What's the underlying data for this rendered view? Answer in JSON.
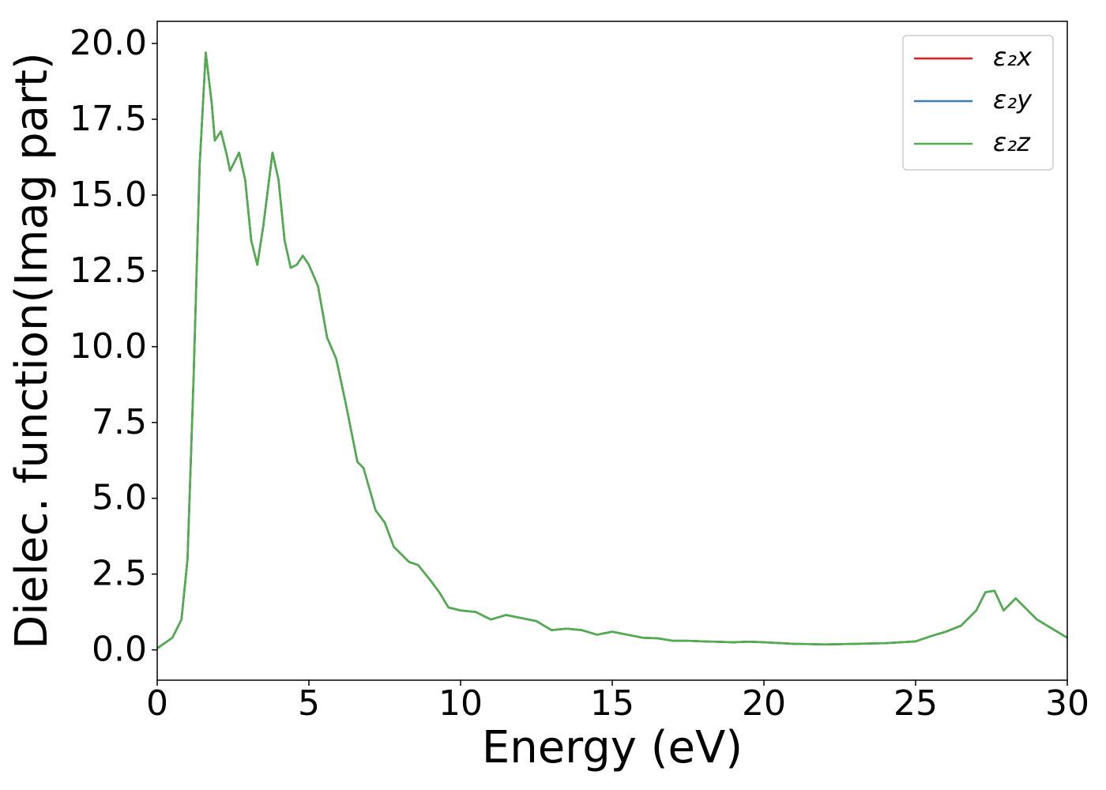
{
  "chart_data": {
    "type": "line",
    "xlabel": "Energy (eV)",
    "ylabel": "Dielec. function(Imag part)",
    "x": [
      0,
      0.5,
      0.8,
      1.0,
      1.2,
      1.4,
      1.6,
      1.8,
      1.9,
      2.1,
      2.3,
      2.4,
      2.5,
      2.7,
      2.9,
      3.1,
      3.3,
      3.5,
      3.8,
      4.0,
      4.2,
      4.4,
      4.6,
      4.8,
      5.0,
      5.3,
      5.6,
      5.9,
      6.2,
      6.4,
      6.6,
      6.8,
      7.0,
      7.2,
      7.5,
      7.8,
      8.0,
      8.3,
      8.6,
      9.0,
      9.3,
      9.6,
      10.0,
      10.5,
      11.0,
      11.5,
      12.0,
      12.5,
      13.0,
      13.5,
      14.0,
      14.5,
      15.0,
      15.5,
      16.0,
      16.5,
      17.0,
      17.5,
      18,
      19,
      19.5,
      20,
      21,
      22,
      23,
      24,
      25,
      25.5,
      26,
      26.5,
      27,
      27.3,
      27.6,
      27.9,
      28.3,
      28.6,
      29,
      29.5,
      30
    ],
    "series": [
      {
        "name": "ε₂x",
        "color": "#e41a1c",
        "values": [
          0.05,
          0.4,
          1.0,
          3.0,
          9,
          16,
          19.7,
          18,
          16.8,
          17.1,
          16.3,
          15.8,
          16.0,
          16.4,
          15.5,
          13.5,
          12.7,
          14.0,
          16.4,
          15.5,
          13.5,
          12.6,
          12.7,
          13.0,
          12.7,
          12.0,
          10.3,
          9.6,
          8.2,
          7.2,
          6.2,
          6.0,
          5.3,
          4.6,
          4.2,
          3.4,
          3.2,
          2.9,
          2.8,
          2.3,
          1.9,
          1.4,
          1.3,
          1.25,
          1.0,
          1.15,
          1.05,
          0.95,
          0.65,
          0.7,
          0.65,
          0.5,
          0.6,
          0.5,
          0.4,
          0.38,
          0.3,
          0.3,
          0.28,
          0.25,
          0.27,
          0.25,
          0.2,
          0.18,
          0.2,
          0.22,
          0.28,
          0.45,
          0.6,
          0.8,
          1.3,
          1.9,
          1.95,
          1.3,
          1.7,
          1.4,
          1.0,
          0.7,
          0.4
        ]
      },
      {
        "name": "ε₂y",
        "color": "#377eb8",
        "values": [
          0.05,
          0.4,
          1.0,
          3.0,
          9,
          16,
          19.7,
          18,
          16.8,
          17.1,
          16.3,
          15.8,
          16.0,
          16.4,
          15.5,
          13.5,
          12.7,
          14.0,
          16.4,
          15.5,
          13.5,
          12.6,
          12.7,
          13.0,
          12.7,
          12.0,
          10.3,
          9.6,
          8.2,
          7.2,
          6.2,
          6.0,
          5.3,
          4.6,
          4.2,
          3.4,
          3.2,
          2.9,
          2.8,
          2.3,
          1.9,
          1.4,
          1.3,
          1.25,
          1.0,
          1.15,
          1.05,
          0.95,
          0.65,
          0.7,
          0.65,
          0.5,
          0.6,
          0.5,
          0.4,
          0.38,
          0.3,
          0.3,
          0.28,
          0.25,
          0.27,
          0.25,
          0.2,
          0.18,
          0.2,
          0.22,
          0.28,
          0.45,
          0.6,
          0.8,
          1.3,
          1.9,
          1.95,
          1.3,
          1.7,
          1.4,
          1.0,
          0.7,
          0.4
        ]
      },
      {
        "name": "ε₂z",
        "color": "#4daf4a",
        "values": [
          0.05,
          0.4,
          1.0,
          3.0,
          9,
          16,
          19.7,
          18,
          16.8,
          17.1,
          16.3,
          15.8,
          16.0,
          16.4,
          15.5,
          13.5,
          12.7,
          14.0,
          16.4,
          15.5,
          13.5,
          12.6,
          12.7,
          13.0,
          12.7,
          12.0,
          10.3,
          9.6,
          8.2,
          7.2,
          6.2,
          6.0,
          5.3,
          4.6,
          4.2,
          3.4,
          3.2,
          2.9,
          2.8,
          2.3,
          1.9,
          1.4,
          1.3,
          1.25,
          1.0,
          1.15,
          1.05,
          0.95,
          0.65,
          0.7,
          0.65,
          0.5,
          0.6,
          0.5,
          0.4,
          0.38,
          0.3,
          0.3,
          0.28,
          0.25,
          0.27,
          0.25,
          0.2,
          0.18,
          0.2,
          0.22,
          0.28,
          0.45,
          0.6,
          0.8,
          1.3,
          1.9,
          1.95,
          1.3,
          1.7,
          1.4,
          1.0,
          0.7,
          0.4
        ]
      }
    ],
    "xlim": [
      0,
      30
    ],
    "xticks": [
      0,
      5,
      10,
      15,
      20,
      25,
      30
    ],
    "ylim": [
      -1,
      20.73
    ],
    "yticks": [
      {
        "value": 0,
        "label": "0.0"
      },
      2.5,
      {
        "value": 5,
        "label": "5.0"
      },
      7.5,
      {
        "value": 10,
        "label": "10.0"
      },
      12.5,
      {
        "value": 15,
        "label": "15.0"
      },
      17.5,
      {
        "value": 20,
        "label": "20.0"
      }
    ],
    "grid": false,
    "legend": "upper right"
  }
}
